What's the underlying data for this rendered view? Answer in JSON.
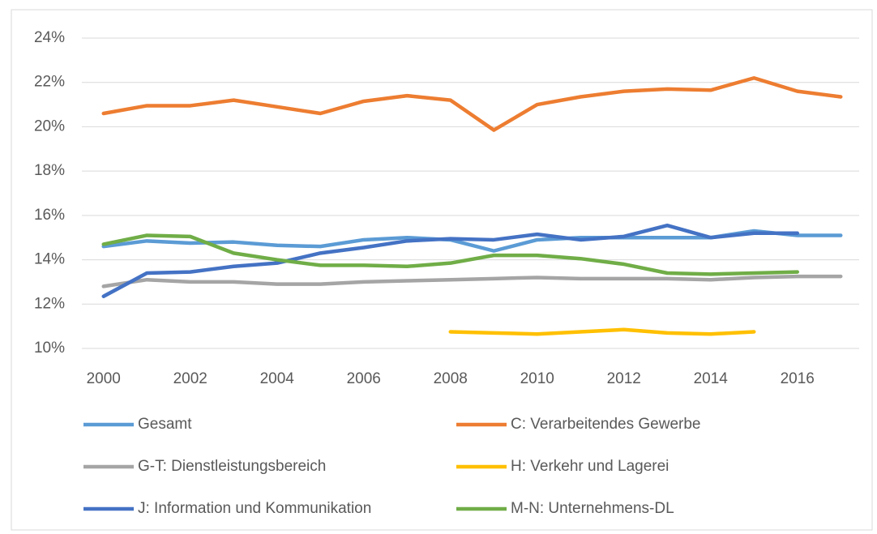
{
  "chart_data": {
    "type": "line",
    "x": [
      2000,
      2001,
      2002,
      2003,
      2004,
      2005,
      2006,
      2007,
      2008,
      2009,
      2010,
      2011,
      2012,
      2013,
      2014,
      2015,
      2016,
      2017
    ],
    "xlim": [
      1999.5,
      2017.5
    ],
    "xticks": [
      2000,
      2002,
      2004,
      2006,
      2008,
      2010,
      2012,
      2014,
      2016
    ],
    "ylim": [
      10,
      24
    ],
    "yticks": [
      {
        "value": 10,
        "label": "10%"
      },
      {
        "value": 12,
        "label": "12%"
      },
      {
        "value": 14,
        "label": "14%"
      },
      {
        "value": 16,
        "label": "16%"
      },
      {
        "value": 18,
        "label": "18%"
      },
      {
        "value": 20,
        "label": "20%"
      },
      {
        "value": 22,
        "label": "22%"
      },
      {
        "value": 24,
        "label": "24%"
      }
    ],
    "grid": true,
    "legend": "bottom",
    "series": [
      {
        "name": "Gesamt",
        "color": "#5b9bd5",
        "values": [
          14.6,
          14.85,
          14.75,
          14.8,
          14.65,
          14.6,
          14.9,
          15.0,
          14.9,
          14.4,
          14.9,
          15.0,
          15.0,
          15.0,
          15.0,
          15.3,
          15.1,
          15.1
        ]
      },
      {
        "name": "C: Verarbeitendes Gewerbe",
        "color": "#ed7d31",
        "values": [
          20.6,
          20.95,
          20.95,
          21.2,
          20.9,
          20.6,
          21.15,
          21.4,
          21.2,
          19.85,
          21.0,
          21.35,
          21.6,
          21.7,
          21.65,
          22.2,
          21.6,
          21.35
        ]
      },
      {
        "name": "G-T: Dienstleistungsbereich",
        "color": "#a5a5a5",
        "values": [
          12.8,
          13.1,
          13.0,
          13.0,
          12.9,
          12.9,
          13.0,
          13.05,
          13.1,
          13.15,
          13.2,
          13.15,
          13.15,
          13.15,
          13.1,
          13.2,
          13.25,
          13.25
        ]
      },
      {
        "name": "H: Verkehr und Lagerei",
        "color": "#ffc000",
        "values": [
          null,
          null,
          null,
          null,
          null,
          null,
          null,
          null,
          10.75,
          10.7,
          10.65,
          10.75,
          10.85,
          10.7,
          10.65,
          10.75,
          null,
          null
        ]
      },
      {
        "name": "J: Information und Kommunikation",
        "color": "#4472c4",
        "values": [
          12.35,
          13.4,
          13.45,
          13.7,
          13.85,
          14.3,
          14.55,
          14.85,
          14.95,
          14.9,
          15.15,
          14.9,
          15.05,
          15.55,
          15.0,
          15.2,
          15.2,
          null
        ]
      },
      {
        "name": "M-N: Unternehmens-DL",
        "color": "#70ad47",
        "values": [
          14.7,
          15.1,
          15.05,
          14.3,
          14.0,
          13.75,
          13.75,
          13.7,
          13.85,
          14.2,
          14.2,
          14.05,
          13.8,
          13.4,
          13.35,
          13.4,
          13.45,
          null
        ]
      }
    ]
  }
}
